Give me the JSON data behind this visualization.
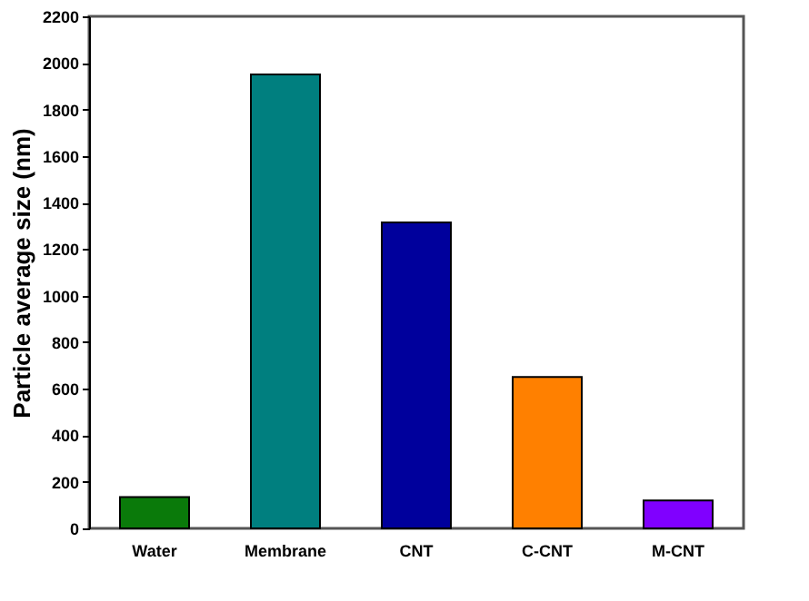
{
  "chart_data": {
    "type": "bar",
    "ylabel": "Particle average size (nm)",
    "categories": [
      "Water",
      "Membrane",
      "CNT",
      "C-CNT",
      "M-CNT"
    ],
    "values": [
      135,
      1950,
      1315,
      650,
      120
    ],
    "colors": [
      "#0a7a0a",
      "#007f7f",
      "#00009c",
      "#ff8000",
      "#8000ff"
    ],
    "ylim": [
      0,
      2200
    ],
    "yticks": [
      0,
      200,
      400,
      600,
      800,
      1000,
      1200,
      1400,
      1600,
      1800,
      2000,
      2200
    ],
    "grid": false
  }
}
